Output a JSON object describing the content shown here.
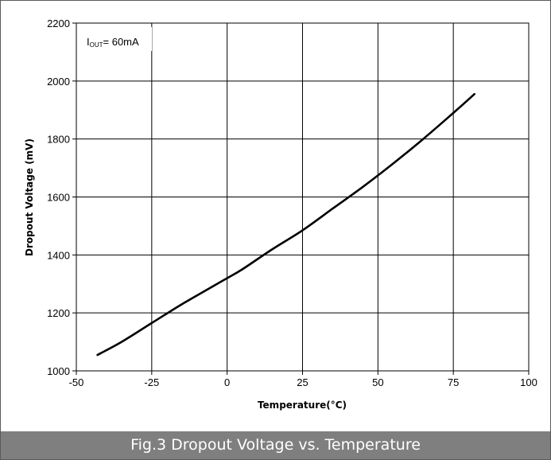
{
  "caption": "Fig.3 Dropout Voltage vs. Temperature",
  "chart_data": {
    "type": "line",
    "xlabel": "Temperature(°C)",
    "ylabel": "Dropout Voltage (mV)",
    "xlim": [
      -50,
      100
    ],
    "ylim": [
      1000,
      2200
    ],
    "xticks": [
      "-50",
      "-25",
      "0",
      "25",
      "50",
      "75",
      "100"
    ],
    "yticks": [
      "1000",
      "1200",
      "1400",
      "1600",
      "1800",
      "2000",
      "2200"
    ],
    "grid": true,
    "annotation": {
      "prefix": "I",
      "subscript": "OUT",
      "suffix": "= 60mA"
    },
    "series": [
      {
        "x": [
          -43,
          -35,
          -25,
          -15,
          -5,
          0,
          5,
          15,
          25,
          35,
          45,
          55,
          65,
          75,
          82
        ],
        "y": [
          1055,
          1100,
          1165,
          1230,
          1290,
          1320,
          1350,
          1420,
          1485,
          1560,
          1635,
          1715,
          1800,
          1890,
          1955
        ]
      }
    ],
    "colors": {
      "line": "#000000",
      "grid": "#000000",
      "caption_bg": "#7f7f7f"
    }
  }
}
